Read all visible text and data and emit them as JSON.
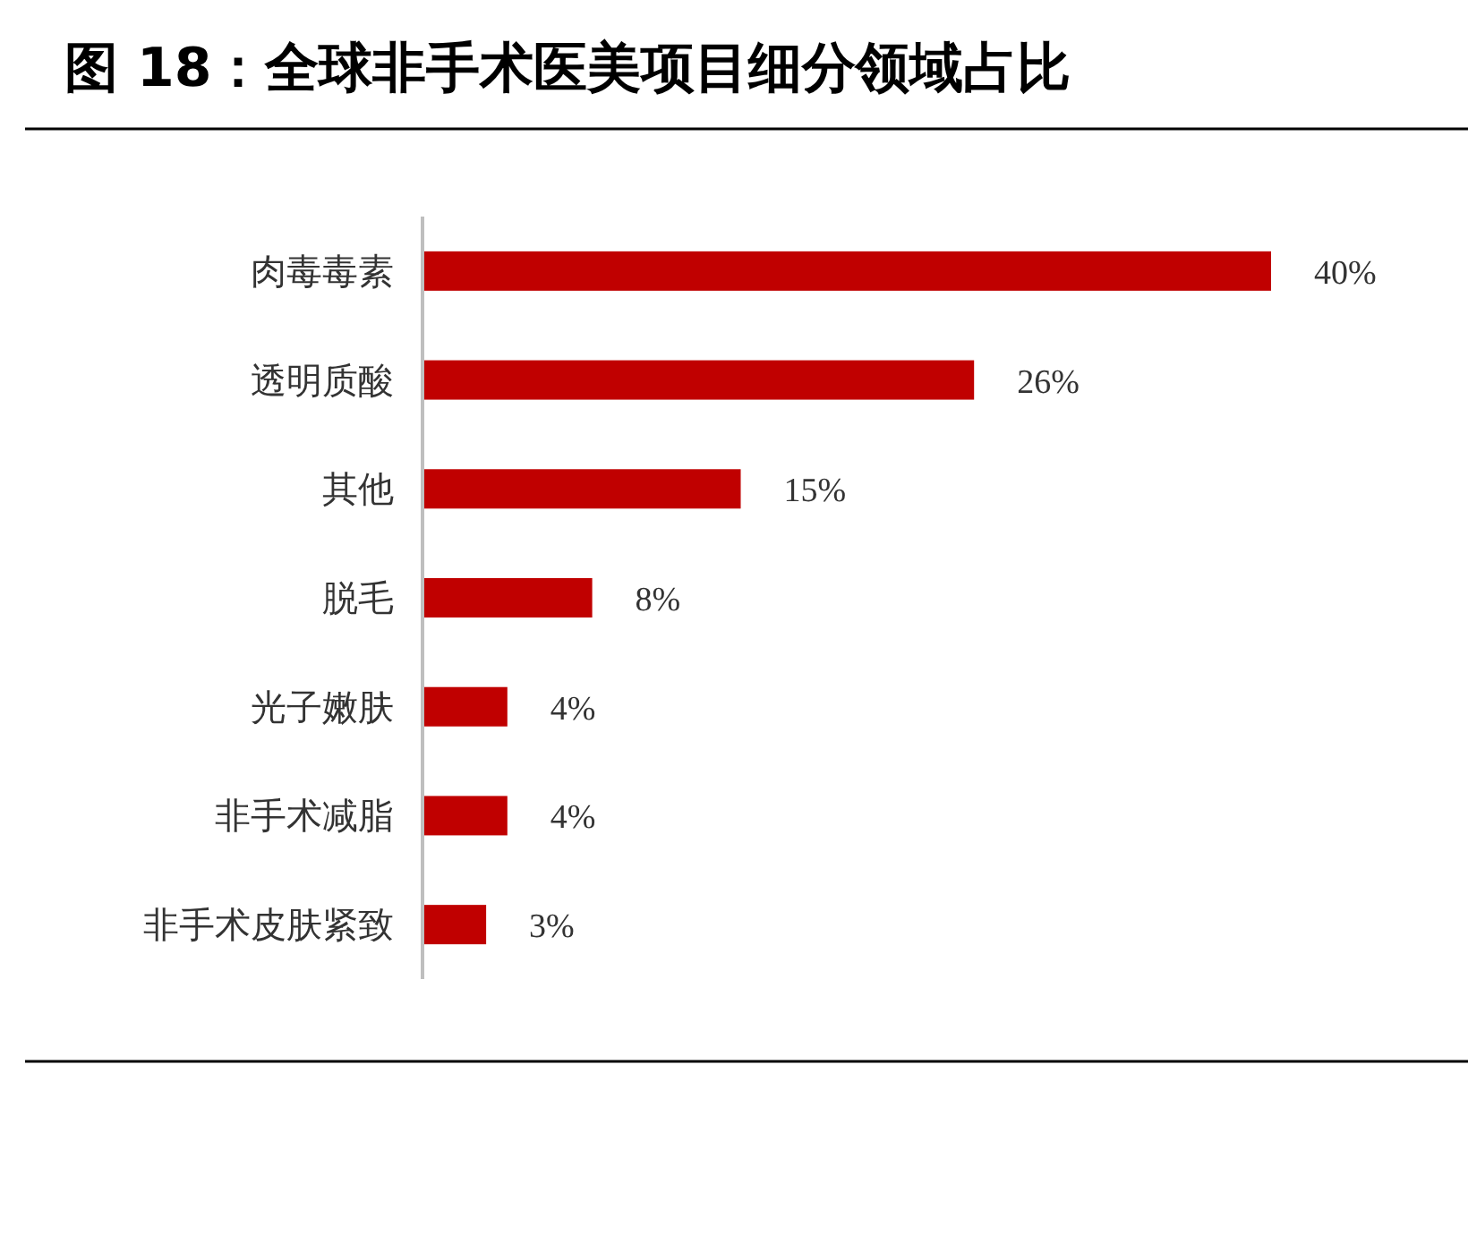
{
  "chart_data": {
    "type": "bar",
    "orientation": "horizontal",
    "title": "图 18：全球非手术医美项目细分领域占比",
    "categories": [
      "肉毒毒素",
      "透明质酸",
      "其他",
      "脱毛",
      "光子嫩肤",
      "非手术减脂",
      "非手术皮肤紧致"
    ],
    "values": [
      40,
      26,
      15,
      8,
      4,
      4,
      3
    ],
    "value_labels": [
      "40%",
      "26%",
      "15%",
      "8%",
      "4%",
      "4%",
      "3%"
    ],
    "color": "#c00000"
  }
}
